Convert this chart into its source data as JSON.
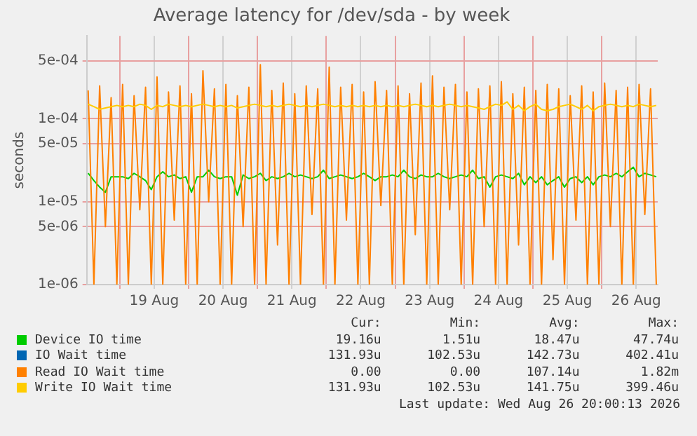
{
  "chart_data": {
    "type": "line",
    "title": "Average latency for /dev/sda - by week",
    "ylabel": "seconds",
    "log": "y",
    "grid": true,
    "legend": "bottom",
    "marker": "none",
    "line_style": "solid",
    "ylim": [
      1e-06,
      0.001
    ],
    "yticks": [
      {
        "value": 1e-06,
        "label": "1e-06"
      },
      {
        "value": 5e-06,
        "label": "5e-06"
      },
      {
        "value": 1e-05,
        "label": "1e-05"
      },
      {
        "value": 5e-05,
        "label": "5e-05"
      },
      {
        "value": 0.0001,
        "label": "1e-04"
      },
      {
        "value": 0.0005,
        "label": "5e-04"
      }
    ],
    "xlim": [
      "2026-08-18T12:30",
      "2026-08-26T19:30"
    ],
    "xticks": [
      {
        "value": "2026-08-19T00:00",
        "label": null
      },
      {
        "value": "2026-08-19T12:00",
        "label": "19 Aug"
      },
      {
        "value": "2026-08-20T00:00",
        "label": null
      },
      {
        "value": "2026-08-20T12:00",
        "label": "20 Aug"
      },
      {
        "value": "2026-08-21T00:00",
        "label": null
      },
      {
        "value": "2026-08-21T12:00",
        "label": "21 Aug"
      },
      {
        "value": "2026-08-22T00:00",
        "label": null
      },
      {
        "value": "2026-08-22T12:00",
        "label": "22 Aug"
      },
      {
        "value": "2026-08-23T00:00",
        "label": null
      },
      {
        "value": "2026-08-23T12:00",
        "label": "23 Aug"
      },
      {
        "value": "2026-08-24T00:00",
        "label": null
      },
      {
        "value": "2026-08-24T12:00",
        "label": "24 Aug"
      },
      {
        "value": "2026-08-25T00:00",
        "label": null
      },
      {
        "value": "2026-08-25T12:00",
        "label": "25 Aug"
      },
      {
        "value": "2026-08-26T00:00",
        "label": null
      },
      {
        "value": "2026-08-26T12:00",
        "label": "26 Aug"
      }
    ],
    "x": [
      "2026-08-18T13:00",
      "2026-08-18T15:00",
      "2026-08-18T17:00",
      "2026-08-18T19:00",
      "2026-08-18T21:00",
      "2026-08-18T23:00",
      "2026-08-19T01:00",
      "2026-08-19T03:00",
      "2026-08-19T05:00",
      "2026-08-19T07:00",
      "2026-08-19T09:00",
      "2026-08-19T11:00",
      "2026-08-19T13:00",
      "2026-08-19T15:00",
      "2026-08-19T17:00",
      "2026-08-19T19:00",
      "2026-08-19T21:00",
      "2026-08-19T23:00",
      "2026-08-20T01:00",
      "2026-08-20T03:00",
      "2026-08-20T05:00",
      "2026-08-20T07:00",
      "2026-08-20T09:00",
      "2026-08-20T11:00",
      "2026-08-20T13:00",
      "2026-08-20T15:00",
      "2026-08-20T17:00",
      "2026-08-20T19:00",
      "2026-08-20T21:00",
      "2026-08-20T23:00",
      "2026-08-21T01:00",
      "2026-08-21T03:00",
      "2026-08-21T05:00",
      "2026-08-21T07:00",
      "2026-08-21T09:00",
      "2026-08-21T11:00",
      "2026-08-21T13:00",
      "2026-08-21T15:00",
      "2026-08-21T17:00",
      "2026-08-21T19:00",
      "2026-08-21T21:00",
      "2026-08-21T23:00",
      "2026-08-22T01:00",
      "2026-08-22T03:00",
      "2026-08-22T05:00",
      "2026-08-22T07:00",
      "2026-08-22T09:00",
      "2026-08-22T11:00",
      "2026-08-22T13:00",
      "2026-08-22T15:00",
      "2026-08-22T17:00",
      "2026-08-22T19:00",
      "2026-08-22T21:00",
      "2026-08-22T23:00",
      "2026-08-23T01:00",
      "2026-08-23T03:00",
      "2026-08-23T05:00",
      "2026-08-23T07:00",
      "2026-08-23T09:00",
      "2026-08-23T11:00",
      "2026-08-23T13:00",
      "2026-08-23T15:00",
      "2026-08-23T17:00",
      "2026-08-23T19:00",
      "2026-08-23T21:00",
      "2026-08-23T23:00",
      "2026-08-24T01:00",
      "2026-08-24T03:00",
      "2026-08-24T05:00",
      "2026-08-24T07:00",
      "2026-08-24T09:00",
      "2026-08-24T11:00",
      "2026-08-24T13:00",
      "2026-08-24T15:00",
      "2026-08-24T17:00",
      "2026-08-24T19:00",
      "2026-08-24T21:00",
      "2026-08-24T23:00",
      "2026-08-25T01:00",
      "2026-08-25T03:00",
      "2026-08-25T05:00",
      "2026-08-25T07:00",
      "2026-08-25T09:00",
      "2026-08-25T11:00",
      "2026-08-25T13:00",
      "2026-08-25T15:00",
      "2026-08-25T17:00",
      "2026-08-25T19:00",
      "2026-08-25T21:00",
      "2026-08-25T23:00",
      "2026-08-26T01:00",
      "2026-08-26T03:00",
      "2026-08-26T05:00",
      "2026-08-26T07:00",
      "2026-08-26T09:00",
      "2026-08-26T11:00",
      "2026-08-26T13:00",
      "2026-08-26T15:00",
      "2026-08-26T17:00",
      "2026-08-26T19:00"
    ],
    "series": [
      {
        "name": "Device IO time",
        "color": "#00cc00",
        "values": [
          2.2e-05,
          1.8e-05,
          1.5e-05,
          1.3e-05,
          2e-05,
          2e-05,
          2e-05,
          1.9e-05,
          2.2e-05,
          2e-05,
          1.8e-05,
          1.4e-05,
          2e-05,
          2.3e-05,
          2e-05,
          2.1e-05,
          1.9e-05,
          2e-05,
          1.3e-05,
          2e-05,
          2e-05,
          2.4e-05,
          2e-05,
          1.9e-05,
          2e-05,
          2e-05,
          1.2e-05,
          2.1e-05,
          1.9e-05,
          2e-05,
          2.2e-05,
          1.8e-05,
          2e-05,
          1.9e-05,
          2e-05,
          2.2e-05,
          2e-05,
          2.1e-05,
          2e-05,
          1.9e-05,
          2e-05,
          2.4e-05,
          1.9e-05,
          2e-05,
          2.1e-05,
          2e-05,
          1.9e-05,
          2e-05,
          2.2e-05,
          2e-05,
          1.8e-05,
          2e-05,
          2e-05,
          2.1e-05,
          2e-05,
          2.4e-05,
          2e-05,
          1.9e-05,
          2.1e-05,
          2e-05,
          2e-05,
          2.2e-05,
          2e-05,
          1.9e-05,
          2e-05,
          2.1e-05,
          2e-05,
          2.4e-05,
          1.9e-05,
          2e-05,
          1.5e-05,
          2e-05,
          2.1e-05,
          2e-05,
          1.9e-05,
          2.2e-05,
          1.6e-05,
          2e-05,
          1.7e-05,
          2e-05,
          1.6e-05,
          1.8e-05,
          2e-05,
          1.5e-05,
          1.9e-05,
          2e-05,
          1.7e-05,
          2e-05,
          1.6e-05,
          2e-05,
          2.1e-05,
          2e-05,
          2.2e-05,
          2e-05,
          2.3e-05,
          2.6e-05,
          2e-05,
          2.2e-05,
          2.1e-05,
          2e-05
        ]
      },
      {
        "name": "IO Wait time",
        "color": "#0066b3",
        "values": [
          null,
          null,
          null,
          null,
          null,
          null,
          null,
          null,
          null,
          null,
          null,
          null,
          null,
          null,
          null,
          null,
          null,
          null,
          null,
          null,
          null,
          null,
          null,
          null,
          null,
          null,
          null,
          null,
          null,
          null,
          null,
          null,
          null,
          null,
          null,
          null,
          null,
          null,
          null,
          null,
          null,
          null,
          null,
          null,
          null,
          null,
          null,
          null,
          null,
          null,
          null,
          null,
          null,
          null,
          null,
          null,
          null,
          null,
          null,
          null,
          null,
          null,
          null,
          null,
          null,
          null,
          null,
          null,
          null,
          null,
          null,
          null,
          null,
          null,
          null,
          null,
          null,
          null,
          null,
          null,
          null,
          null,
          null,
          null,
          null,
          null,
          null,
          null,
          null,
          null,
          null,
          null,
          null,
          null,
          null,
          null,
          null,
          null,
          null,
          null
        ]
      },
      {
        "name": "Read IO Wait time",
        "color": "#ff8000",
        "values": [
          0.00022,
          1e-06,
          0.00025,
          5e-06,
          0.00018,
          1e-06,
          0.00026,
          1e-06,
          0.00019,
          8e-06,
          0.00024,
          1e-06,
          0.00032,
          1e-06,
          0.00021,
          6e-06,
          0.00025,
          1e-06,
          0.0002,
          1e-06,
          0.00038,
          1e-05,
          0.00023,
          1e-06,
          0.00026,
          1e-06,
          0.00019,
          5e-06,
          0.00024,
          1e-06,
          0.00045,
          1e-06,
          0.00022,
          3e-06,
          0.00027,
          1e-06,
          0.0002,
          1e-06,
          0.00025,
          7e-06,
          0.00023,
          1e-06,
          0.00042,
          1e-06,
          0.00024,
          6e-06,
          0.00026,
          1e-06,
          0.00021,
          1e-06,
          0.00028,
          9e-06,
          0.00022,
          1e-06,
          0.00025,
          1e-06,
          0.0002,
          4e-06,
          0.00027,
          1e-06,
          0.00033,
          1e-06,
          0.00024,
          8e-06,
          0.00026,
          1e-06,
          0.00021,
          1e-06,
          0.00023,
          5e-06,
          0.00025,
          1e-06,
          0.00028,
          1e-06,
          0.0002,
          3e-06,
          0.00024,
          1e-06,
          0.00022,
          1e-06,
          0.00026,
          2e-06,
          0.00023,
          1e-06,
          0.00019,
          6e-06,
          0.00025,
          1e-06,
          0.00021,
          1e-06,
          0.00027,
          5e-06,
          0.00022,
          1e-06,
          0.00024,
          1e-06,
          0.00026,
          7e-06,
          0.00023,
          1e-06
        ]
      },
      {
        "name": "Write IO Wait time",
        "color": "#ffcc00",
        "values": [
          0.00015,
          0.00014,
          0.00013,
          0.000135,
          0.00014,
          0.000145,
          0.00014,
          0.000145,
          0.00014,
          0.00015,
          0.000145,
          0.00013,
          0.000145,
          0.00014,
          0.00015,
          0.000145,
          0.00014,
          0.000145,
          0.00014,
          0.000145,
          0.00015,
          0.000145,
          0.00014,
          0.000145,
          0.00014,
          0.000145,
          0.000135,
          0.00014,
          0.000145,
          0.00015,
          0.000145,
          0.00014,
          0.000145,
          0.00014,
          0.000145,
          0.00015,
          0.000145,
          0.00014,
          0.000145,
          0.00014,
          0.000145,
          0.00015,
          0.000145,
          0.00014,
          0.000145,
          0.00014,
          0.000145,
          0.00014,
          0.000145,
          0.00014,
          0.000145,
          0.00014,
          0.000145,
          0.00014,
          0.000145,
          0.00014,
          0.000145,
          0.00015,
          0.000145,
          0.00014,
          0.000145,
          0.00014,
          0.000145,
          0.00015,
          0.000145,
          0.00014,
          0.000145,
          0.00014,
          0.000135,
          0.00013,
          0.00014,
          0.00015,
          0.000145,
          0.00016,
          0.00013,
          0.000145,
          0.000125,
          0.00014,
          0.00015,
          0.00013,
          0.000125,
          0.00013,
          0.00014,
          0.000145,
          0.00015,
          0.00014,
          0.00013,
          0.000145,
          0.000125,
          0.00014,
          0.000145,
          0.00015,
          0.000145,
          0.00014,
          0.000145,
          0.00014,
          0.00015,
          0.000145,
          0.00014,
          0.000145
        ]
      }
    ],
    "annotations": [
      "Cur:",
      "Min:",
      "Avg:",
      "Max:",
      "19.16u",
      "1.51u",
      "18.47u",
      "47.74u",
      "131.93u",
      "102.53u",
      "142.73u",
      "402.41u",
      "0.00",
      "0.00",
      "107.14u",
      "1.82m",
      "131.93u",
      "102.53u",
      "141.75u",
      "399.46u",
      "Last update: Wed Aug 26 20:00:13 2026"
    ]
  }
}
